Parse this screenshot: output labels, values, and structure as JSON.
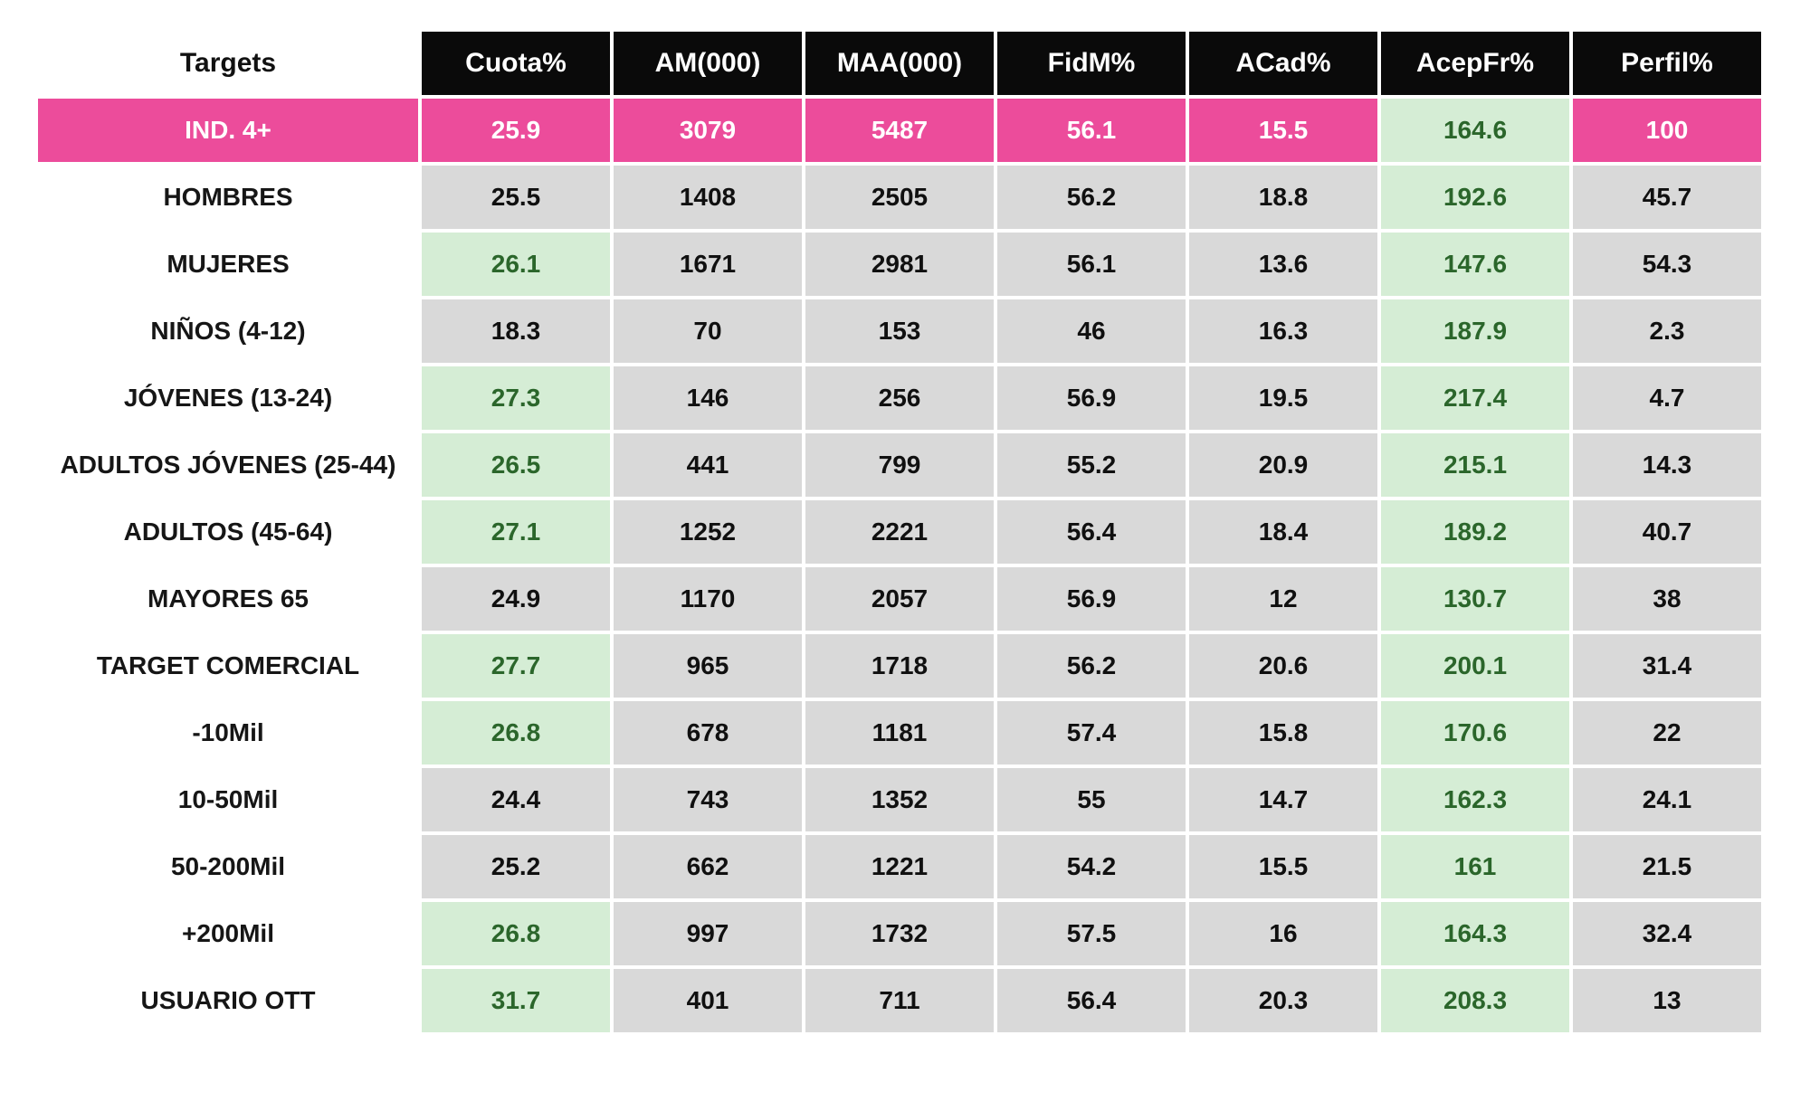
{
  "colors": {
    "highlight_row": "#ec4c9b",
    "positive_bg": "#d5edd5",
    "positive_text": "#2b662b",
    "neutral_bg": "#d9d9d9",
    "header_bg": "#0a0a0a",
    "header_text": "#ffffff"
  },
  "chart_data": {
    "type": "table",
    "columns": [
      "Targets",
      "Cuota%",
      "AM(000)",
      "MAA(000)",
      "FidM%",
      "ACad%",
      "AcepFr%",
      "Perfil%"
    ],
    "rows": [
      {
        "label": "IND. 4+",
        "values": [
          25.9,
          3079,
          5487,
          56.1,
          15.5,
          164.6,
          100
        ],
        "row_bg": "pink",
        "cell_bgs": [
          "pink",
          "pink",
          "pink",
          "pink",
          "pink",
          "green",
          "pink"
        ]
      },
      {
        "label": "HOMBRES",
        "values": [
          25.5,
          1408,
          2505,
          56.2,
          18.8,
          192.6,
          45.7
        ],
        "row_bg": "white",
        "cell_bgs": [
          "gray",
          "gray",
          "gray",
          "gray",
          "gray",
          "green",
          "gray"
        ]
      },
      {
        "label": "MUJERES",
        "values": [
          26.1,
          1671,
          2981,
          56.1,
          13.6,
          147.6,
          54.3
        ],
        "row_bg": "white",
        "cell_bgs": [
          "green",
          "gray",
          "gray",
          "gray",
          "gray",
          "green",
          "gray"
        ]
      },
      {
        "label": "NIÑOS (4-12)",
        "values": [
          18.3,
          70,
          153,
          46,
          16.3,
          187.9,
          2.3
        ],
        "row_bg": "white",
        "cell_bgs": [
          "gray",
          "gray",
          "gray",
          "gray",
          "gray",
          "green",
          "gray"
        ]
      },
      {
        "label": "JÓVENES (13-24)",
        "values": [
          27.3,
          146,
          256,
          56.9,
          19.5,
          217.4,
          4.7
        ],
        "row_bg": "white",
        "cell_bgs": [
          "green",
          "gray",
          "gray",
          "gray",
          "gray",
          "green",
          "gray"
        ]
      },
      {
        "label": "ADULTOS JÓVENES (25-44)",
        "values": [
          26.5,
          441,
          799,
          55.2,
          20.9,
          215.1,
          14.3
        ],
        "row_bg": "white",
        "cell_bgs": [
          "green",
          "gray",
          "gray",
          "gray",
          "gray",
          "green",
          "gray"
        ]
      },
      {
        "label": "ADULTOS (45-64)",
        "values": [
          27.1,
          1252,
          2221,
          56.4,
          18.4,
          189.2,
          40.7
        ],
        "row_bg": "white",
        "cell_bgs": [
          "green",
          "gray",
          "gray",
          "gray",
          "gray",
          "green",
          "gray"
        ]
      },
      {
        "label": "MAYORES 65",
        "values": [
          24.9,
          1170,
          2057,
          56.9,
          12,
          130.7,
          38
        ],
        "row_bg": "white",
        "cell_bgs": [
          "gray",
          "gray",
          "gray",
          "gray",
          "gray",
          "green",
          "gray"
        ]
      },
      {
        "label": "TARGET COMERCIAL",
        "values": [
          27.7,
          965,
          1718,
          56.2,
          20.6,
          200.1,
          31.4
        ],
        "row_bg": "white",
        "cell_bgs": [
          "green",
          "gray",
          "gray",
          "gray",
          "gray",
          "green",
          "gray"
        ]
      },
      {
        "label": "-10Mil",
        "values": [
          26.8,
          678,
          1181,
          57.4,
          15.8,
          170.6,
          22
        ],
        "row_bg": "white",
        "cell_bgs": [
          "green",
          "gray",
          "gray",
          "gray",
          "gray",
          "green",
          "gray"
        ]
      },
      {
        "label": "10-50Mil",
        "values": [
          24.4,
          743,
          1352,
          55,
          14.7,
          162.3,
          24.1
        ],
        "row_bg": "white",
        "cell_bgs": [
          "gray",
          "gray",
          "gray",
          "gray",
          "gray",
          "green",
          "gray"
        ]
      },
      {
        "label": "50-200Mil",
        "values": [
          25.2,
          662,
          1221,
          54.2,
          15.5,
          161,
          21.5
        ],
        "row_bg": "white",
        "cell_bgs": [
          "gray",
          "gray",
          "gray",
          "gray",
          "gray",
          "green",
          "gray"
        ]
      },
      {
        "label": "+200Mil",
        "values": [
          26.8,
          997,
          1732,
          57.5,
          16,
          164.3,
          32.4
        ],
        "row_bg": "white",
        "cell_bgs": [
          "green",
          "gray",
          "gray",
          "gray",
          "gray",
          "green",
          "gray"
        ]
      },
      {
        "label": "USUARIO OTT",
        "values": [
          31.7,
          401,
          711,
          56.4,
          20.3,
          208.3,
          13
        ],
        "row_bg": "white",
        "cell_bgs": [
          "green",
          "gray",
          "gray",
          "gray",
          "gray",
          "green",
          "gray"
        ]
      }
    ]
  }
}
